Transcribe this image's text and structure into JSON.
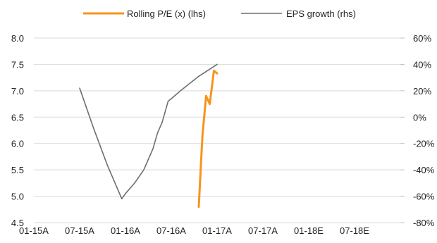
{
  "chart_data": {
    "type": "line",
    "title": "",
    "xlabel": "",
    "ylabel_left": "",
    "ylabel_right": "",
    "categories": [
      "01-15A",
      "07-15A",
      "01-16A",
      "07-16A",
      "01-17A",
      "07-17A",
      "01-18E",
      "07-18E"
    ],
    "y_left": {
      "ticks": [
        "4.5",
        "5.0",
        "5.5",
        "6.0",
        "6.5",
        "7.0",
        "7.5",
        "8.0"
      ],
      "range": [
        4.5,
        8.0
      ]
    },
    "y_right": {
      "ticks": [
        "-80%",
        "-60%",
        "-40%",
        "-20%",
        "0%",
        "20%",
        "40%",
        "60%"
      ],
      "range": [
        -80,
        60
      ]
    },
    "grid": true,
    "legend_position": "top",
    "series": [
      {
        "name": "Rolling P/E (x) (lhs)",
        "axis": "left",
        "color": "#f7941d",
        "points": [
          [
            3.6,
            4.8
          ],
          [
            3.68,
            6.15
          ],
          [
            3.76,
            6.9
          ],
          [
            3.84,
            6.75
          ],
          [
            3.93,
            7.38
          ],
          [
            4.0,
            7.33
          ]
        ]
      },
      {
        "name": "EPS growth (rhs)",
        "axis": "right",
        "color": "#6d6e71",
        "points": [
          [
            1.0,
            22
          ],
          [
            1.1,
            12
          ],
          [
            1.3,
            -8
          ],
          [
            1.6,
            -36
          ],
          [
            1.92,
            -62
          ],
          [
            2.0,
            -58
          ],
          [
            2.2,
            -50
          ],
          [
            2.4,
            -40
          ],
          [
            2.6,
            -24
          ],
          [
            2.7,
            -12
          ],
          [
            2.8,
            -4
          ],
          [
            2.93,
            12
          ],
          [
            3.0,
            14
          ],
          [
            3.2,
            20
          ],
          [
            3.6,
            31
          ],
          [
            4.0,
            40
          ]
        ]
      }
    ]
  }
}
